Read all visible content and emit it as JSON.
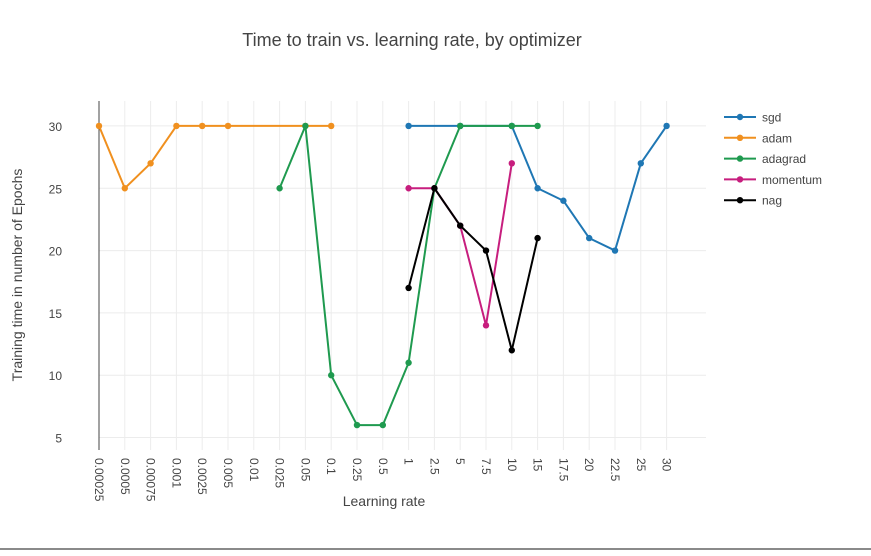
{
  "chart_data": {
    "type": "line",
    "title": "Time to train vs. learning rate, by optimizer",
    "xlabel": "Learning rate",
    "ylabel": "Training time in number of Epochs",
    "x_scale": "categorical",
    "categories": [
      "0.00025",
      "0.0005",
      "0.00075",
      "0.001",
      "0.0025",
      "0.005",
      "0.01",
      "0.025",
      "0.05",
      "0.1",
      "0.25",
      "0.5",
      "1",
      "2.5",
      "5",
      "7.5",
      "10",
      "15",
      "17.5",
      "20",
      "22.5",
      "25",
      "30"
    ],
    "y_ticks": [
      5,
      10,
      15,
      20,
      25,
      30
    ],
    "ylim": [
      4,
      32
    ],
    "grid": true,
    "legend_position": "right",
    "series": [
      {
        "name": "sgd",
        "color": "#1f77b4",
        "points": [
          [
            "1",
            30
          ],
          [
            "5",
            30
          ],
          [
            "10",
            30
          ],
          [
            "15",
            25
          ],
          [
            "17.5",
            24
          ],
          [
            "20",
            21
          ],
          [
            "22.5",
            20
          ],
          [
            "25",
            27
          ],
          [
            "30",
            30
          ]
        ]
      },
      {
        "name": "adam",
        "color": "#f0901f",
        "points": [
          [
            "0.00025",
            30
          ],
          [
            "0.0005",
            25
          ],
          [
            "0.00075",
            27
          ],
          [
            "0.001",
            30
          ],
          [
            "0.0025",
            30
          ],
          [
            "0.005",
            30
          ],
          [
            "0.05",
            30
          ],
          [
            "0.1",
            30
          ]
        ]
      },
      {
        "name": "adagrad",
        "color": "#1f9a4f",
        "points": [
          [
            "0.025",
            25
          ],
          [
            "0.05",
            30
          ],
          [
            "0.1",
            10
          ],
          [
            "0.25",
            6
          ],
          [
            "0.5",
            6
          ],
          [
            "1",
            11
          ],
          [
            "2.5",
            25
          ],
          [
            "5",
            30
          ],
          [
            "10",
            30
          ],
          [
            "15",
            30
          ]
        ]
      },
      {
        "name": "momentum",
        "color": "#c71e7e",
        "points": [
          [
            "1",
            25
          ],
          [
            "2.5",
            25
          ],
          [
            "5",
            22
          ],
          [
            "7.5",
            14
          ],
          [
            "10",
            27
          ]
        ]
      },
      {
        "name": "nag",
        "color": "#000000",
        "points": [
          [
            "1",
            17
          ],
          [
            "2.5",
            25
          ],
          [
            "5",
            22
          ],
          [
            "7.5",
            20
          ],
          [
            "10",
            12
          ],
          [
            "15",
            21
          ]
        ]
      }
    ]
  }
}
